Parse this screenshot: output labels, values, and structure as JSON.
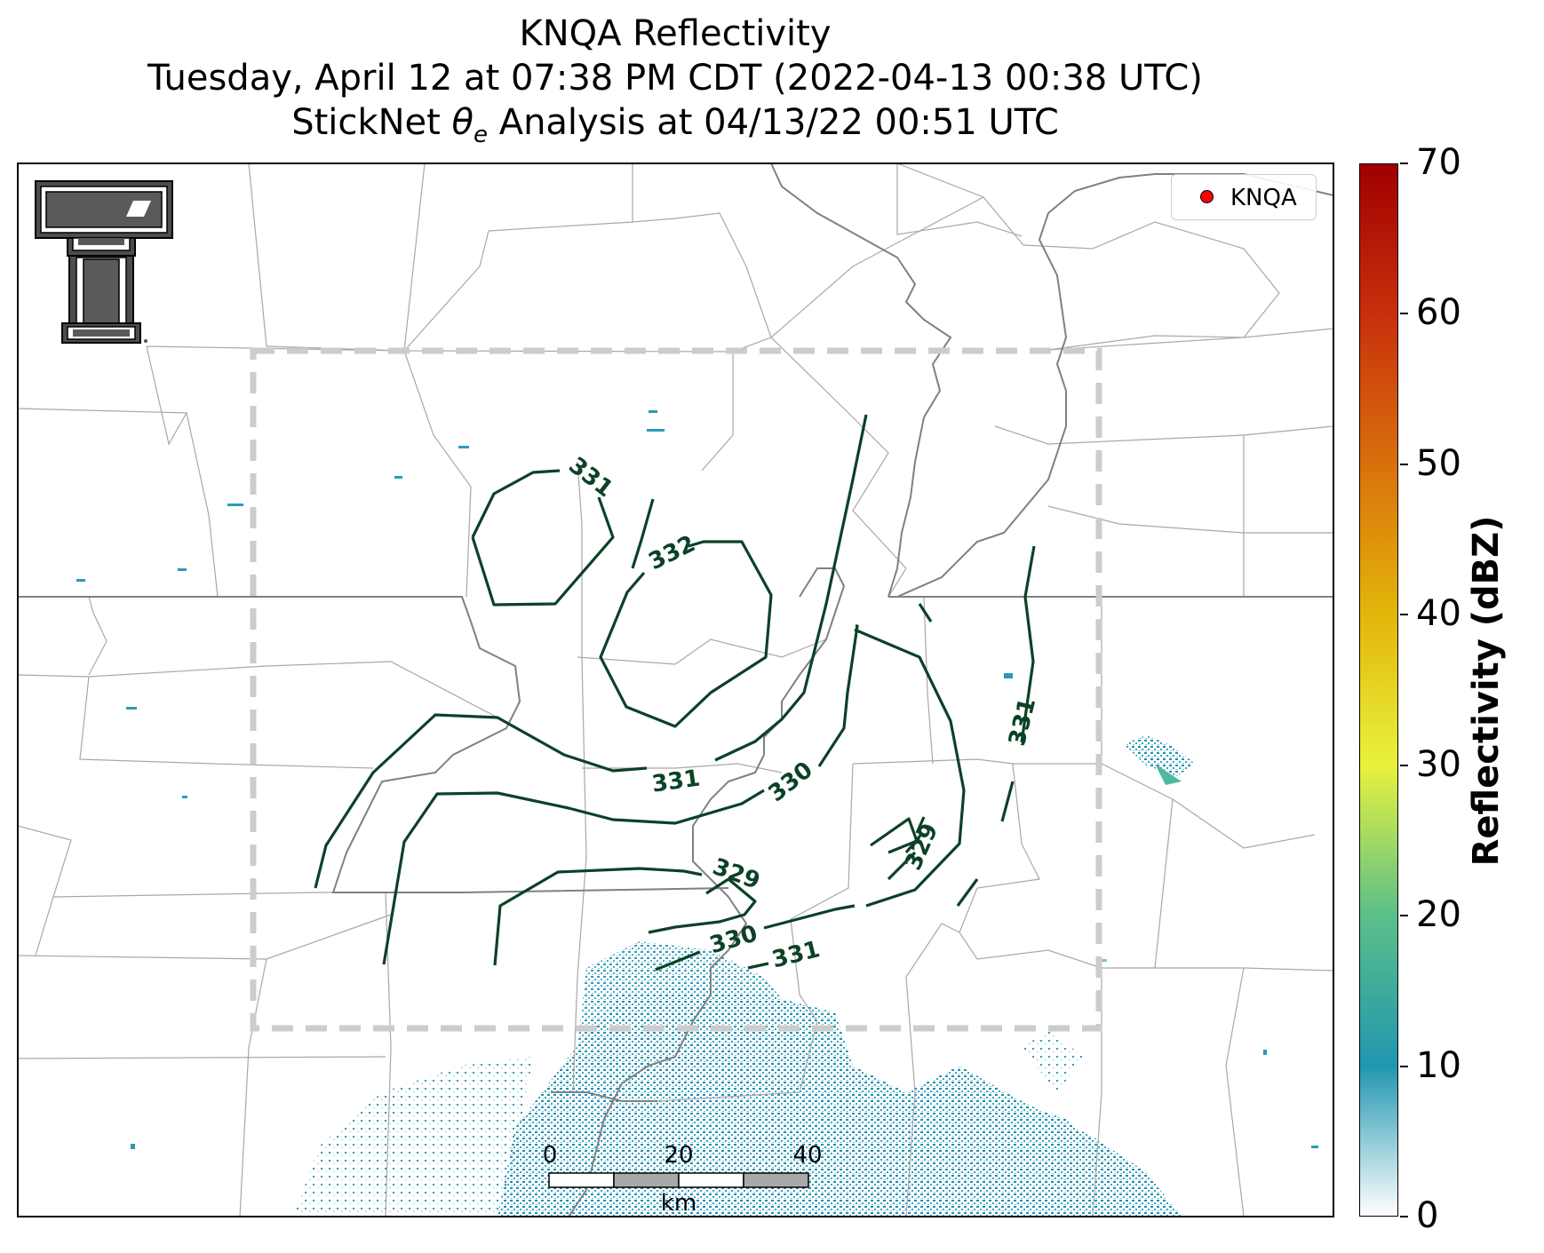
{
  "title": {
    "line1": "KNQA Reflectivity",
    "line2": "Tuesday, April 12 at 07:38 PM CDT (2022-04-13 00:38 UTC)",
    "line3_prefix": "StickNet ",
    "line3_symbol": "θ",
    "line3_subscript": "e",
    "line3_suffix": " Analysis at 04/13/22 00:51 UTC"
  },
  "legend": {
    "station_label": "KNQA",
    "marker_color": "#ff0000"
  },
  "colorbar": {
    "label": "Reflectivity (dBZ)",
    "ticks": [
      "0",
      "10",
      "20",
      "30",
      "40",
      "50",
      "60",
      "70"
    ],
    "stops": [
      "#ffffff",
      "#2196b0",
      "#5bbf8a",
      "#e8f23c",
      "#e3b60a",
      "#d9700c",
      "#c8300c",
      "#a00000"
    ]
  },
  "contours": {
    "color": "#0b4225",
    "labels": [
      "331",
      "332",
      "331",
      "330",
      "329",
      "329",
      "330",
      "331",
      "331"
    ]
  },
  "scale_bar": {
    "ticks": [
      "0",
      "20",
      "40"
    ],
    "unit": "km"
  },
  "colors": {
    "analysis_box": "#cccccc",
    "border_line": "#808080",
    "county_line": "#a8a8a8"
  }
}
